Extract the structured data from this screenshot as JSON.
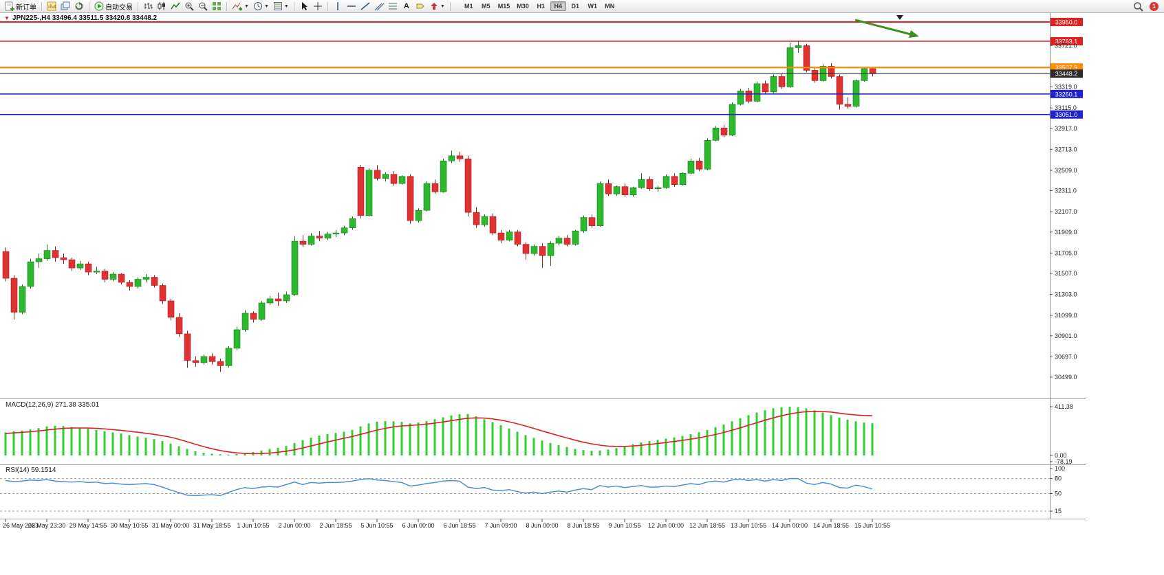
{
  "toolbar": {
    "new_order_label": "新订单",
    "autotrade_label": "自动交易",
    "timeframes": [
      "M1",
      "M5",
      "M15",
      "M30",
      "H1",
      "H4",
      "D1",
      "W1",
      "MN"
    ],
    "active_timeframe": "H4",
    "notification_count": "1"
  },
  "chart_data": {
    "type": "candlestick",
    "symbol": "JPN225-",
    "period": "H4",
    "title": "JPN225-,H4 33496.4 33511.5 33420.8 33448.2",
    "current": {
      "open": 33496.4,
      "high": 33511.5,
      "low": 33420.8,
      "close": 33448.2
    },
    "colors": {
      "up": "#2db92d",
      "up_border": "#157815",
      "down": "#e03232",
      "down_border": "#9e1f1f",
      "histogram": "#33cc33",
      "signal": "#dd2222",
      "rsi": "#4a90d9"
    },
    "price_axis": {
      "min": 30499.0,
      "max": 33950.0,
      "ticks": [
        "33721.0",
        "33319.0",
        "33115.0",
        "32917.0",
        "32713.0",
        "32509.0",
        "32311.0",
        "32107.0",
        "31909.0",
        "31705.0",
        "31507.0",
        "31303.0",
        "31099.0",
        "30901.0",
        "30697.0",
        "30499.0"
      ]
    },
    "price_lines": [
      {
        "price": 33950.0,
        "label": "33950.0",
        "color": "#dd2222",
        "width": 2
      },
      {
        "price": 33763.1,
        "label": "33763.1",
        "color": "#dd2222",
        "width": 1.6
      },
      {
        "price": 33507.9,
        "label": "33507.9",
        "color": "#ff8c00",
        "width": 2.2
      },
      {
        "price": 33448.2,
        "label": "33448.2",
        "color": "#2b2b2b",
        "width": 1.1
      },
      {
        "price": 33250.1,
        "label": "33250.1",
        "color": "#2222cc",
        "width": 1.6
      },
      {
        "price": 33051.0,
        "label": "33051.0",
        "color": "#2222cc",
        "width": 1.6
      }
    ],
    "time_labels": [
      "26 May 2023",
      "28 May 23:30",
      "29 May 14:55",
      "30 May 10:55",
      "31 May 00:00",
      "31 May 18:55",
      "1 Jun 10:55",
      "2 Jun 00:00",
      "2 Jun 18:55",
      "5 Jun 10:55",
      "6 Jun 00:00",
      "6 Jun 18:55",
      "7 Jun 09:00",
      "8 Jun 00:00",
      "8 Jun 18:55",
      "9 Jun 10:55",
      "12 Jun 00:00",
      "12 Jun 18:55",
      "13 Jun 10:55",
      "14 Jun 00:00",
      "14 Jun 18:55",
      "15 Jun 10:55"
    ],
    "candles": [
      [
        31720,
        31760,
        31430,
        31460
      ],
      [
        31460,
        31490,
        31060,
        31130
      ],
      [
        31130,
        31400,
        31110,
        31380
      ],
      [
        31380,
        31650,
        31360,
        31620
      ],
      [
        31620,
        31700,
        31560,
        31650
      ],
      [
        31650,
        31790,
        31630,
        31730
      ],
      [
        31730,
        31770,
        31620,
        31660
      ],
      [
        31660,
        31700,
        31600,
        31640
      ],
      [
        31640,
        31660,
        31530,
        31560
      ],
      [
        31560,
        31630,
        31540,
        31600
      ],
      [
        31600,
        31620,
        31490,
        31520
      ],
      [
        31520,
        31570,
        31500,
        31530
      ],
      [
        31530,
        31550,
        31420,
        31450
      ],
      [
        31450,
        31520,
        31430,
        31500
      ],
      [
        31500,
        31510,
        31400,
        31420
      ],
      [
        31420,
        31440,
        31340,
        31380
      ],
      [
        31380,
        31470,
        31360,
        31450
      ],
      [
        31450,
        31500,
        31420,
        31470
      ],
      [
        31470,
        31490,
        31370,
        31390
      ],
      [
        31390,
        31410,
        31210,
        31240
      ],
      [
        31240,
        31260,
        31050,
        31080
      ],
      [
        31080,
        31120,
        30890,
        30920
      ],
      [
        30920,
        30950,
        30590,
        30660
      ],
      [
        30660,
        30700,
        30600,
        30640
      ],
      [
        30640,
        30720,
        30620,
        30700
      ],
      [
        30700,
        30730,
        30620,
        30650
      ],
      [
        30650,
        30680,
        30550,
        30610
      ],
      [
        30610,
        30800,
        30590,
        30780
      ],
      [
        30780,
        30990,
        30760,
        30960
      ],
      [
        30960,
        31150,
        30940,
        31120
      ],
      [
        31120,
        31140,
        31030,
        31060
      ],
      [
        31060,
        31240,
        31050,
        31220
      ],
      [
        31220,
        31290,
        31200,
        31260
      ],
      [
        31260,
        31320,
        31190,
        31240
      ],
      [
        31240,
        31330,
        31220,
        31300
      ],
      [
        31300,
        31870,
        31290,
        31820
      ],
      [
        31820,
        31880,
        31760,
        31790
      ],
      [
        31790,
        31900,
        31780,
        31870
      ],
      [
        31870,
        31920,
        31820,
        31850
      ],
      [
        31850,
        31910,
        31830,
        31890
      ],
      [
        31890,
        31930,
        31860,
        31900
      ],
      [
        31900,
        31970,
        31880,
        31950
      ],
      [
        31950,
        32060,
        31930,
        32040
      ],
      [
        32540,
        32560,
        32040,
        32070
      ],
      [
        32070,
        32530,
        32060,
        32510
      ],
      [
        32510,
        32560,
        32410,
        32430
      ],
      [
        32430,
        32490,
        32400,
        32470
      ],
      [
        32470,
        32500,
        32360,
        32380
      ],
      [
        32380,
        32460,
        32370,
        32450
      ],
      [
        32450,
        32470,
        31990,
        32020
      ],
      [
        32020,
        32140,
        32000,
        32120
      ],
      [
        32120,
        32400,
        32110,
        32380
      ],
      [
        32380,
        32420,
        32280,
        32300
      ],
      [
        32300,
        32620,
        32290,
        32600
      ],
      [
        32600,
        32700,
        32580,
        32650
      ],
      [
        32650,
        32690,
        32590,
        32620
      ],
      [
        32620,
        32650,
        32060,
        32100
      ],
      [
        32100,
        32150,
        31950,
        31980
      ],
      [
        31980,
        32080,
        31960,
        32060
      ],
      [
        32060,
        32090,
        31880,
        31900
      ],
      [
        31900,
        31930,
        31800,
        31830
      ],
      [
        31830,
        31930,
        31820,
        31910
      ],
      [
        31910,
        31930,
        31770,
        31790
      ],
      [
        31790,
        31810,
        31640,
        31700
      ],
      [
        31700,
        31790,
        31680,
        31770
      ],
      [
        31770,
        31800,
        31560,
        31680
      ],
      [
        31680,
        31820,
        31580,
        31800
      ],
      [
        31800,
        31870,
        31780,
        31850
      ],
      [
        31850,
        31880,
        31770,
        31790
      ],
      [
        31790,
        31930,
        31780,
        31920
      ],
      [
        31920,
        32070,
        31900,
        32050
      ],
      [
        32050,
        32080,
        31950,
        31970
      ],
      [
        31970,
        32400,
        31960,
        32380
      ],
      [
        32380,
        32420,
        32260,
        32280
      ],
      [
        32280,
        32360,
        32260,
        32350
      ],
      [
        32350,
        32380,
        32250,
        32270
      ],
      [
        32270,
        32350,
        32250,
        32340
      ],
      [
        32340,
        32480,
        32330,
        32420
      ],
      [
        32420,
        32450,
        32310,
        32330
      ],
      [
        32330,
        32360,
        32300,
        32340
      ],
      [
        32340,
        32470,
        32330,
        32450
      ],
      [
        32450,
        32480,
        32350,
        32370
      ],
      [
        32370,
        32490,
        32360,
        32480
      ],
      [
        32480,
        32620,
        32470,
        32600
      ],
      [
        32600,
        32630,
        32500,
        32520
      ],
      [
        32520,
        32820,
        32510,
        32800
      ],
      [
        32800,
        32940,
        32790,
        32920
      ],
      [
        32920,
        32950,
        32830,
        32850
      ],
      [
        32850,
        33170,
        32840,
        33150
      ],
      [
        33150,
        33300,
        33140,
        33280
      ],
      [
        33280,
        33310,
        33160,
        33180
      ],
      [
        33180,
        33370,
        33170,
        33350
      ],
      [
        33350,
        33380,
        33250,
        33270
      ],
      [
        33270,
        33440,
        33260,
        33420
      ],
      [
        33420,
        33450,
        33300,
        33320
      ],
      [
        33320,
        33750,
        33310,
        33700
      ],
      [
        33700,
        33770,
        33650,
        33720
      ],
      [
        33720,
        33740,
        33460,
        33480
      ],
      [
        33480,
        33510,
        33360,
        33380
      ],
      [
        33380,
        33540,
        33370,
        33520
      ],
      [
        33520,
        33550,
        33400,
        33420
      ],
      [
        33420,
        33440,
        33100,
        33150
      ],
      [
        33150,
        33220,
        33110,
        33130
      ],
      [
        33130,
        33390,
        33120,
        33380
      ],
      [
        33380,
        33510,
        33370,
        33496
      ],
      [
        33496.4,
        33511.5,
        33420.8,
        33448.2
      ]
    ],
    "macd": {
      "label": "MACD(12,26,9) 271.38 335.01",
      "main_value": 271.38,
      "signal_value": 335.01,
      "axis": [
        "411.38",
        "0.00",
        "-78.19"
      ],
      "values": [
        195,
        205,
        210,
        220,
        230,
        245,
        250,
        248,
        240,
        232,
        225,
        215,
        205,
        195,
        185,
        172,
        160,
        150,
        138,
        122,
        100,
        78,
        55,
        35,
        22,
        15,
        10,
        8,
        12,
        22,
        30,
        42,
        55,
        65,
        80,
        105,
        130,
        150,
        168,
        180,
        190,
        200,
        215,
        245,
        270,
        285,
        290,
        288,
        283,
        270,
        278,
        290,
        305,
        322,
        338,
        348,
        350,
        330,
        305,
        282,
        255,
        228,
        200,
        172,
        148,
        125,
        105,
        88,
        72,
        55,
        45,
        40,
        42,
        50,
        62,
        78,
        95,
        110,
        122,
        132,
        142,
        152,
        165,
        180,
        196,
        215,
        238,
        262,
        288,
        315,
        340,
        362,
        382,
        398,
        408,
        411.38,
        408,
        398,
        382,
        362,
        340,
        320,
        302,
        288,
        277,
        271.38
      ],
      "signal": [
        185,
        190,
        195,
        200,
        207,
        215,
        222,
        228,
        231,
        232,
        231,
        228,
        224,
        218,
        212,
        204,
        196,
        187,
        178,
        167,
        154,
        136,
        116,
        95,
        75,
        57,
        42,
        30,
        22,
        17,
        15,
        16,
        20,
        27,
        36,
        48,
        63,
        80,
        97,
        114,
        130,
        145,
        160,
        178,
        196,
        214,
        229,
        241,
        249,
        253,
        258,
        265,
        273,
        283,
        294,
        305,
        314,
        317,
        315,
        308,
        298,
        284,
        267,
        248,
        228,
        207,
        187,
        167,
        148,
        129,
        112,
        98,
        87,
        79,
        76,
        76,
        80,
        86,
        93,
        101,
        109,
        118,
        127,
        138,
        149,
        162,
        177,
        194,
        213,
        233,
        255,
        276,
        297,
        317,
        335,
        350,
        362,
        369,
        372,
        370,
        366,
        357,
        348,
        341,
        337,
        335.01
      ]
    },
    "rsi": {
      "label": "RSI(14) 59.1514",
      "value": 59.1514,
      "axis": [
        "100",
        "80",
        "50",
        "15"
      ],
      "levels": [
        80,
        50,
        15
      ],
      "values": [
        76,
        74,
        75,
        77,
        76,
        78,
        75,
        74,
        73,
        74,
        72,
        73,
        70,
        71,
        69,
        68,
        69,
        70,
        68,
        63,
        57,
        52,
        47,
        46,
        47,
        48,
        46,
        52,
        58,
        62,
        60,
        63,
        64,
        63,
        68,
        73,
        68,
        72,
        71,
        72,
        72,
        73,
        75,
        78,
        80,
        77,
        76,
        74,
        72,
        65,
        67,
        70,
        72,
        75,
        76,
        75,
        63,
        60,
        62,
        57,
        56,
        58,
        54,
        51,
        53,
        50,
        53,
        55,
        53,
        57,
        60,
        58,
        66,
        63,
        65,
        62,
        64,
        66,
        63,
        63,
        65,
        64,
        67,
        70,
        68,
        73,
        75,
        73,
        77,
        79,
        76,
        78,
        75,
        78,
        76,
        80,
        80,
        71,
        68,
        72,
        69,
        62,
        61,
        67,
        64,
        59.15
      ]
    },
    "annotations": {
      "arrow_color": "#3f8f1f"
    }
  }
}
